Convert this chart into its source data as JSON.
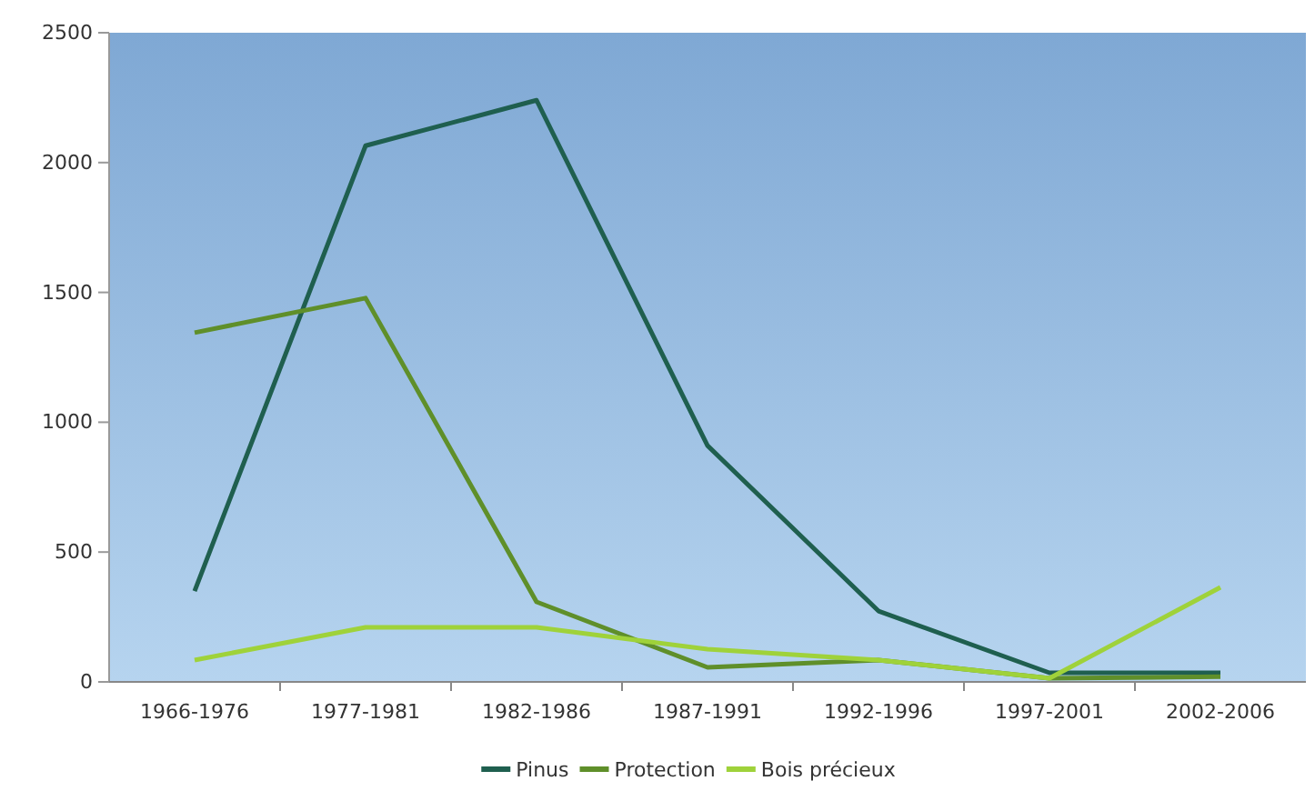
{
  "chart_data": {
    "type": "line",
    "categories": [
      "1966-1976",
      "1977-1981",
      "1982-1986",
      "1987-1991",
      "1992-1996",
      "1997-2001",
      "2002-2006"
    ],
    "series": [
      {
        "name": "Pinus",
        "color": "#1f5f4f",
        "values": [
          350,
          2065,
          2240,
          910,
          273,
          35,
          35
        ]
      },
      {
        "name": "Protection",
        "color": "#5f8f2a",
        "values": [
          1345,
          1478,
          308,
          56,
          84,
          14,
          20
        ]
      },
      {
        "name": "Bois précieux",
        "color": "#9fd23a",
        "values": [
          84,
          210,
          210,
          126,
          84,
          14,
          364
        ]
      }
    ],
    "ylim": [
      0,
      2500
    ],
    "yticks": [
      0,
      500,
      1000,
      1500,
      2000,
      2500
    ],
    "grid": false,
    "legend": "bottom",
    "marker": "none",
    "line_style": "solid"
  }
}
